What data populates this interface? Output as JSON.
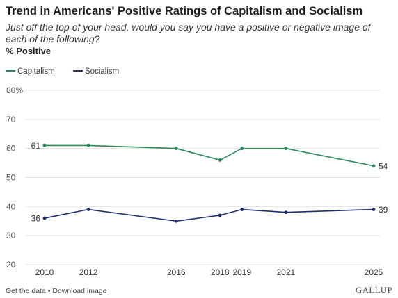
{
  "header": {
    "title": "Trend in Americans' Positive Ratings of Capitalism and Socialism",
    "subtitle": "Just off the top of your head, would you say you have a positive or negative image of each of the following?",
    "unit_label": "% Positive"
  },
  "footer": {
    "get_data": "Get the data",
    "separator": " • ",
    "download": "Download image",
    "brand": "GALLUP"
  },
  "colors": {
    "capitalism": "#2a8a5a",
    "socialism": "#1c2f6b",
    "grid": "#e3e3e3",
    "tick_text": "#555555"
  },
  "chart_data": {
    "type": "line",
    "x": [
      2010,
      2012,
      2016,
      2018,
      2019,
      2021,
      2025
    ],
    "series": [
      {
        "name": "Capitalism",
        "values": [
          61,
          61,
          60,
          56,
          60,
          60,
          54
        ],
        "color": "#2a8a5a"
      },
      {
        "name": "Socialism",
        "values": [
          36,
          39,
          35,
          37,
          39,
          38,
          39
        ],
        "color": "#1c2f6b"
      }
    ],
    "ylim": [
      20,
      80
    ],
    "yticks": [
      20,
      30,
      40,
      50,
      60,
      70,
      80
    ],
    "ytick_labels": [
      "20",
      "30",
      "40",
      "50",
      "60",
      "70",
      "80%"
    ],
    "xtick_labels": [
      "2010",
      "2012",
      "2016",
      "2018",
      "2019",
      "2021",
      "2025"
    ],
    "data_labels": [
      {
        "series": 0,
        "index": 0,
        "text": "61",
        "side": "left"
      },
      {
        "series": 0,
        "index": 6,
        "text": "54",
        "side": "right"
      },
      {
        "series": 1,
        "index": 0,
        "text": "36",
        "side": "left"
      },
      {
        "series": 1,
        "index": 6,
        "text": "39",
        "side": "right"
      }
    ],
    "grid": true,
    "legend": "top-left",
    "title": "Trend in Americans' Positive Ratings of Capitalism and Socialism",
    "xlabel": "",
    "ylabel": "% Positive"
  }
}
